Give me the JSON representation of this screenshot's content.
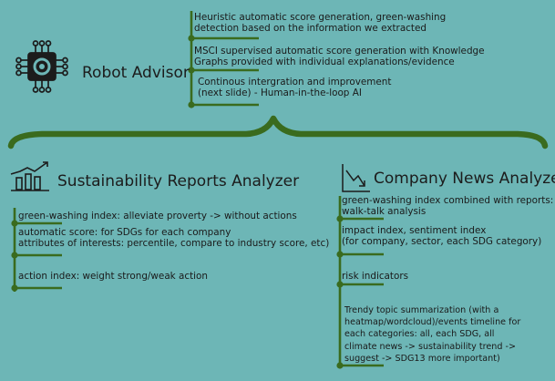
{
  "robot_advisor": {
    "title": "Robot Advisor",
    "icon": "gear-circuit-icon",
    "items": [
      [
        "Heuristic automatic score generation, green-washing",
        "detection based on the information we extracted"
      ],
      [
        "MSCI supervised automatic score generation with Knowledge",
        "Graphs provided with individual explanations/evidence"
      ],
      [
        "Continous intergration and improvement",
        "(next slide) - Human-in-the-loop AI"
      ]
    ]
  },
  "sustainability": {
    "title": "Sustainability Reports Analyzer",
    "icon": "bar-chart-trend-icon",
    "items": [
      [
        "green-washing index: alleviate proverty -> without actions"
      ],
      [
        "automatic score: for SDGs for each company",
        "attributes of interests: percentile, compare to industry score, etc)"
      ],
      [
        "action index: weight strong/weak action"
      ]
    ]
  },
  "company_news": {
    "title": "Company News Analyzer",
    "icon": "downtrend-chart-icon",
    "items": [
      [
        "green-washing index combined with reports:",
        "walk-talk analysis"
      ],
      [
        "impact index, sentiment index",
        "(for company, sector, each SDG category)"
      ],
      [
        "risk indicators"
      ],
      [
        "Trendy topic summarization (with a",
        "heatmap/wordcloud)/events timeline for",
        "each categories: all,  each SDG, all",
        "climate news -> sustainability trend ->",
        "suggest -> SDG13 more important)"
      ]
    ]
  },
  "colors": {
    "background": "#6db6b6",
    "accent_green": "#3a6b1e",
    "text": "#1a1a1a"
  }
}
